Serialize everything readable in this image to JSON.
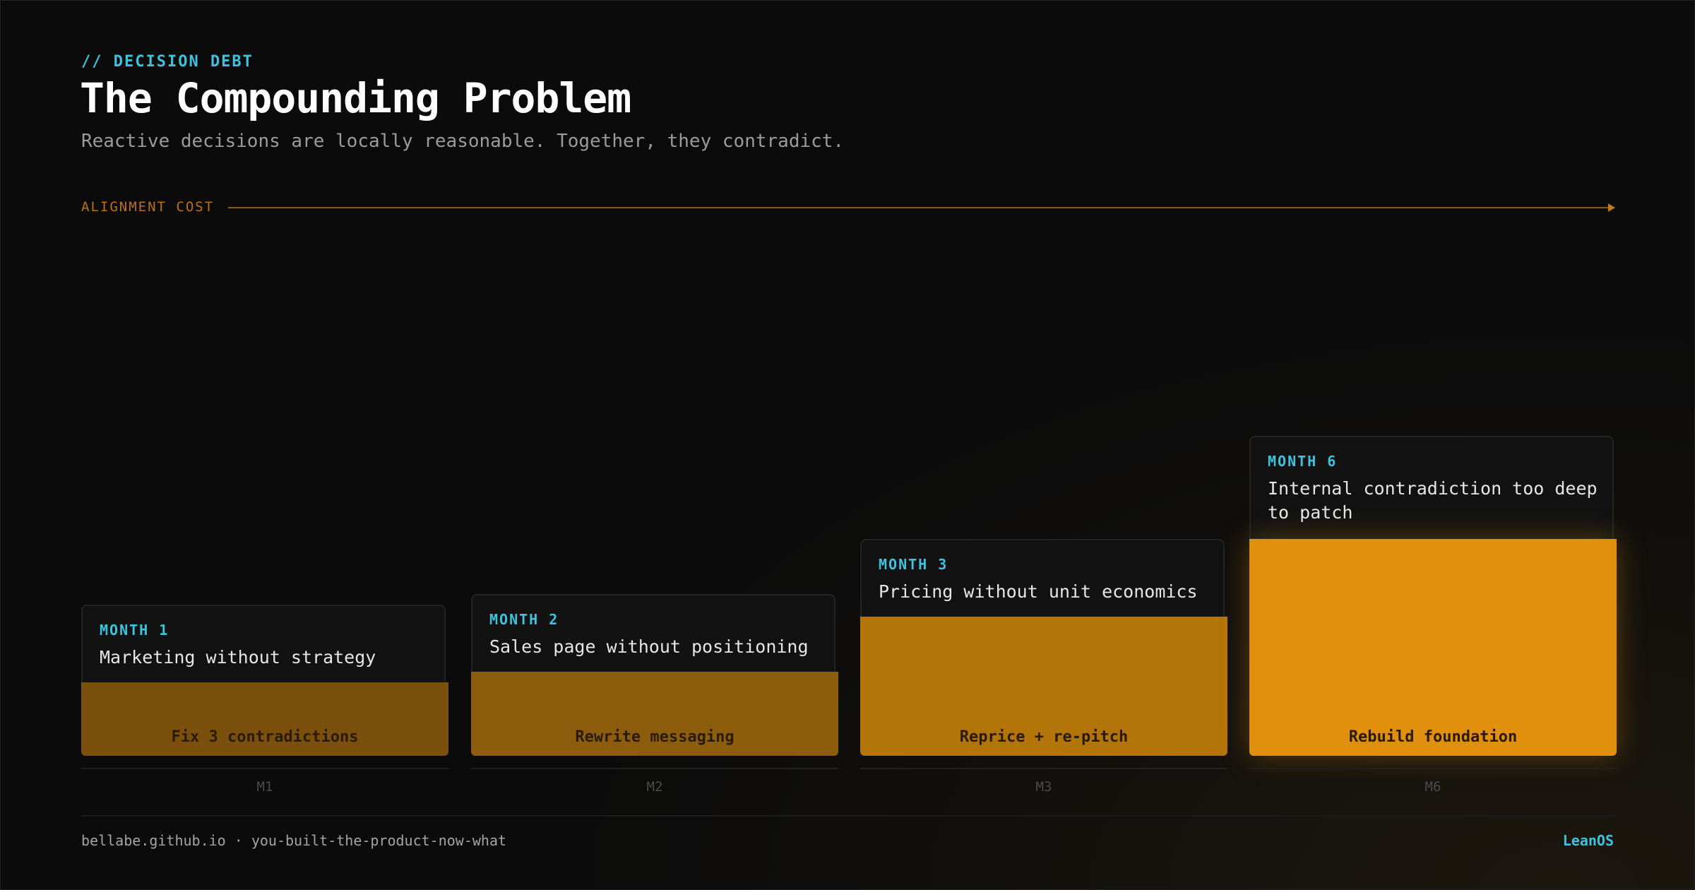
{
  "header": {
    "kicker": "// DECISION DEBT",
    "title": "The Compounding Problem",
    "subtitle": "Reactive decisions are locally reasonable. Together, they contradict."
  },
  "axis": {
    "label": "ALIGNMENT COST"
  },
  "chart_data": {
    "type": "bar",
    "title": "The Compounding Problem",
    "ylabel": "ALIGNMENT COST",
    "categories": [
      "M1",
      "M2",
      "M3",
      "M6"
    ],
    "values": [
      1,
      1.1,
      1.6,
      2.3
    ],
    "ylim": [
      0,
      2.3
    ],
    "bars": [
      {
        "tick": "M1",
        "month": "MONTH 1",
        "decision": "Marketing without strategy",
        "fix": "Fix 3 contradictions",
        "color": "#7a500c"
      },
      {
        "tick": "M2",
        "month": "MONTH 2",
        "decision": "Sales page without positioning",
        "fix": "Rewrite messaging",
        "color": "#8d5d0e"
      },
      {
        "tick": "M3",
        "month": "MONTH 3",
        "decision": "Pricing without unit economics",
        "fix": "Reprice + re-pitch",
        "color": "#b3740a"
      },
      {
        "tick": "M6",
        "month": "MONTH 6",
        "decision": "Internal contradiction too deep to patch",
        "fix": "Rebuild foundation",
        "color": "#e0900c"
      }
    ]
  },
  "footer": {
    "source": "bellabe.github.io · you-built-the-product-now-what",
    "brand": "LeanOS"
  }
}
